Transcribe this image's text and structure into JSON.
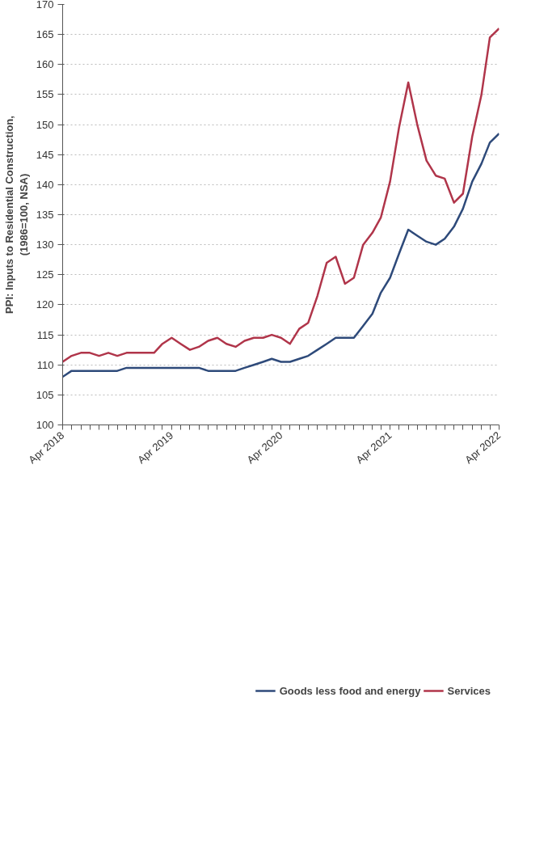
{
  "chart_data": {
    "type": "line",
    "ylabel": "PPI: Inputs to Residential Construction,\n(1986=100, NSA)",
    "x": [
      "2018-04",
      "2018-05",
      "2018-06",
      "2018-07",
      "2018-08",
      "2018-09",
      "2018-10",
      "2018-11",
      "2018-12",
      "2019-01",
      "2019-02",
      "2019-03",
      "2019-04",
      "2019-05",
      "2019-06",
      "2019-07",
      "2019-08",
      "2019-09",
      "2019-10",
      "2019-11",
      "2019-12",
      "2020-01",
      "2020-02",
      "2020-03",
      "2020-04",
      "2020-05",
      "2020-06",
      "2020-07",
      "2020-08",
      "2020-09",
      "2020-10",
      "2020-11",
      "2020-12",
      "2021-01",
      "2021-02",
      "2021-03",
      "2021-04",
      "2021-05",
      "2021-06",
      "2021-07",
      "2021-08",
      "2021-09",
      "2021-10",
      "2021-11",
      "2021-12",
      "2022-01",
      "2022-02",
      "2022-03",
      "2022-04"
    ],
    "series": [
      {
        "name": "Goods less food and energy",
        "color": "#2e4a7a",
        "values": [
          108,
          109,
          109,
          109,
          109,
          109,
          109,
          109.5,
          109.5,
          109.5,
          109.5,
          109.5,
          109.5,
          109.5,
          109.5,
          109.5,
          109,
          109,
          109,
          109,
          109.5,
          110,
          110.5,
          111,
          110.5,
          110.5,
          111,
          111.5,
          112.5,
          113.5,
          114.5,
          114.5,
          114.5,
          116.5,
          118.5,
          122,
          124.5,
          128.5,
          132.5,
          131.5,
          130.5,
          130,
          131,
          133,
          136,
          140.5,
          143.5,
          147,
          148.5
        ]
      },
      {
        "name": "Services",
        "color": "#b0354a",
        "values": [
          110.5,
          111.5,
          112,
          112,
          111.5,
          112,
          111.5,
          112,
          112,
          112,
          112,
          113.5,
          114.5,
          113.5,
          112.5,
          113,
          114,
          114.5,
          113.5,
          113,
          114,
          114.5,
          114.5,
          115,
          114.5,
          113.5,
          116,
          117,
          121.5,
          127,
          128,
          123.5,
          124.5,
          130,
          132,
          134.5,
          140.5,
          149.5,
          157,
          150,
          144,
          141.5,
          141,
          137,
          138.5,
          148,
          155,
          164.5,
          166
        ]
      }
    ],
    "xlim": [
      "2018-04",
      "2022-04"
    ],
    "xticks": [
      {
        "value": "2018-04",
        "label": "Apr 2018"
      },
      {
        "value": "2018-05",
        "label": null
      },
      {
        "value": "2018-06",
        "label": null
      },
      {
        "value": "2018-07",
        "label": null
      },
      {
        "value": "2018-08",
        "label": null
      },
      {
        "value": "2018-09",
        "label": null
      },
      {
        "value": "2018-10",
        "label": null
      },
      {
        "value": "2018-11",
        "label": null
      },
      {
        "value": "2018-12",
        "label": null
      },
      {
        "value": "2019-01",
        "label": null
      },
      {
        "value": "2019-02",
        "label": null
      },
      {
        "value": "2019-03",
        "label": null
      },
      {
        "value": "2019-04",
        "label": "Apr 2019"
      },
      {
        "value": "2019-05",
        "label": null
      },
      {
        "value": "2019-06",
        "label": null
      },
      {
        "value": "2019-07",
        "label": null
      },
      {
        "value": "2019-08",
        "label": null
      },
      {
        "value": "2019-09",
        "label": null
      },
      {
        "value": "2019-10",
        "label": null
      },
      {
        "value": "2019-11",
        "label": null
      },
      {
        "value": "2019-12",
        "label": null
      },
      {
        "value": "2020-01",
        "label": null
      },
      {
        "value": "2020-02",
        "label": null
      },
      {
        "value": "2020-03",
        "label": null
      },
      {
        "value": "2020-04",
        "label": "Apr 2020"
      },
      {
        "value": "2020-05",
        "label": null
      },
      {
        "value": "2020-06",
        "label": null
      },
      {
        "value": "2020-07",
        "label": null
      },
      {
        "value": "2020-08",
        "label": null
      },
      {
        "value": "2020-09",
        "label": null
      },
      {
        "value": "2020-10",
        "label": null
      },
      {
        "value": "2020-11",
        "label": null
      },
      {
        "value": "2020-12",
        "label": null
      },
      {
        "value": "2021-01",
        "label": null
      },
      {
        "value": "2021-02",
        "label": null
      },
      {
        "value": "2021-03",
        "label": null
      },
      {
        "value": "2021-04",
        "label": "Apr 2021"
      },
      {
        "value": "2021-05",
        "label": null
      },
      {
        "value": "2021-06",
        "label": null
      },
      {
        "value": "2021-07",
        "label": null
      },
      {
        "value": "2021-08",
        "label": null
      },
      {
        "value": "2021-09",
        "label": null
      },
      {
        "value": "2021-10",
        "label": null
      },
      {
        "value": "2021-11",
        "label": null
      },
      {
        "value": "2021-12",
        "label": null
      },
      {
        "value": "2022-01",
        "label": null
      },
      {
        "value": "2022-02",
        "label": null
      },
      {
        "value": "2022-03",
        "label": null
      },
      {
        "value": "2022-04",
        "label": "Apr 2022"
      }
    ],
    "ylim": [
      100,
      170
    ],
    "yticks": [
      100,
      105,
      110,
      115,
      120,
      125,
      130,
      135,
      140,
      145,
      150,
      155,
      160,
      165,
      170
    ],
    "grid": "y",
    "legend": "bottom",
    "marker": "none",
    "line_style": "solid"
  }
}
